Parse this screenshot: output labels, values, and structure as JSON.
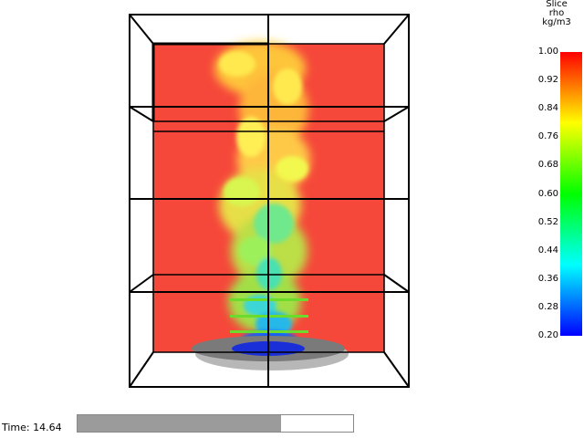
{
  "colorbar": {
    "title": "Slice",
    "quantity": "rho",
    "units": "kg/m3",
    "ticks": [
      "1.00",
      "0.92",
      "0.84",
      "0.76",
      "0.68",
      "0.60",
      "0.52",
      "0.44",
      "0.36",
      "0.28",
      "0.20"
    ],
    "colors": [
      "#ff0000",
      "#ffff00",
      "#00ff00",
      "#00ffff",
      "#0000ff"
    ]
  },
  "time": {
    "label": "Time: 14.64",
    "progress": 0.74
  },
  "scene": {
    "slice_color": "#f5483a",
    "frame_color": "#000000",
    "burner_color": "#7a7a7a"
  }
}
